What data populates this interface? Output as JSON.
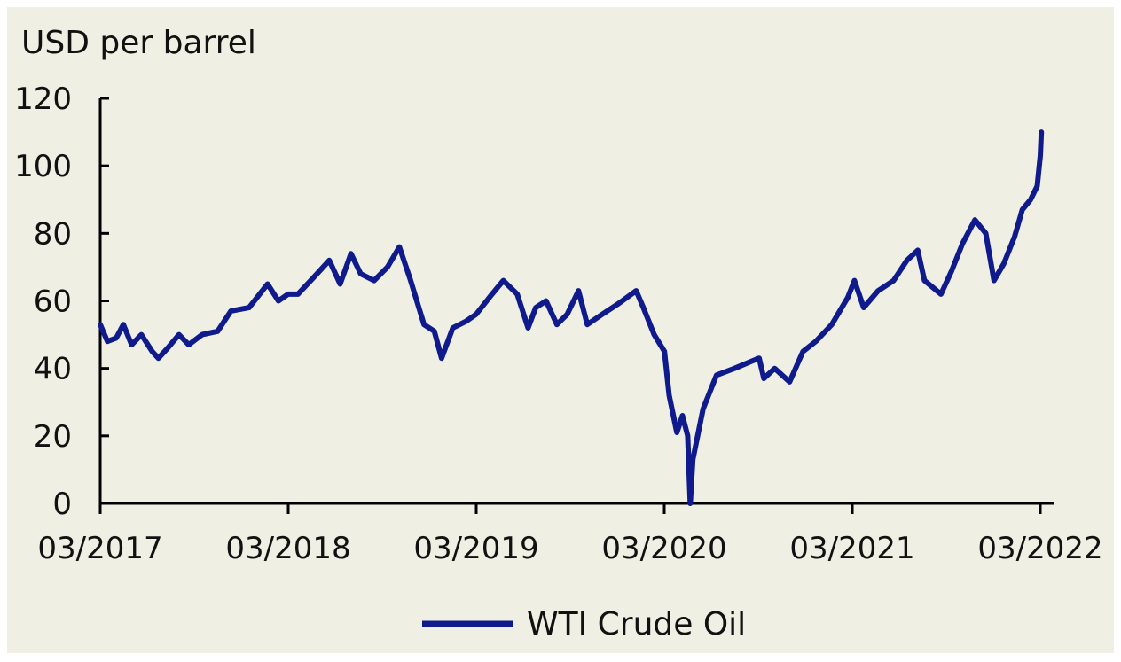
{
  "chart_data": {
    "type": "line",
    "ylabel": "USD per barrel",
    "ylim": [
      0,
      120
    ],
    "yticks": [
      "0",
      "20",
      "40",
      "60",
      "80",
      "100",
      "120"
    ],
    "xlim": [
      "2017-03",
      "2022-03"
    ],
    "xticks": [
      "03/2017",
      "03/2018",
      "03/2019",
      "03/2020",
      "03/2021",
      "03/2022"
    ],
    "grid": false,
    "legend_position": "bottom-center",
    "series": [
      {
        "name": "WTI Crude Oil",
        "color": "#0f1b8c",
        "points": [
          [
            "2017-03-01",
            53
          ],
          [
            "2017-03-15",
            48
          ],
          [
            "2017-04-01",
            49
          ],
          [
            "2017-04-15",
            53
          ],
          [
            "2017-05-01",
            47
          ],
          [
            "2017-05-20",
            50
          ],
          [
            "2017-06-10",
            45
          ],
          [
            "2017-06-22",
            43
          ],
          [
            "2017-07-10",
            46
          ],
          [
            "2017-08-01",
            50
          ],
          [
            "2017-08-20",
            47
          ],
          [
            "2017-09-15",
            50
          ],
          [
            "2017-10-15",
            51
          ],
          [
            "2017-11-10",
            57
          ],
          [
            "2017-12-15",
            58
          ],
          [
            "2018-01-20",
            65
          ],
          [
            "2018-02-10",
            60
          ],
          [
            "2018-03-01",
            62
          ],
          [
            "2018-03-20",
            62
          ],
          [
            "2018-04-20",
            67
          ],
          [
            "2018-05-20",
            72
          ],
          [
            "2018-06-10",
            65
          ],
          [
            "2018-07-01",
            74
          ],
          [
            "2018-07-20",
            68
          ],
          [
            "2018-08-15",
            66
          ],
          [
            "2018-09-10",
            70
          ],
          [
            "2018-10-03",
            76
          ],
          [
            "2018-10-25",
            66
          ],
          [
            "2018-11-20",
            53
          ],
          [
            "2018-12-10",
            51
          ],
          [
            "2018-12-24",
            43
          ],
          [
            "2019-01-15",
            52
          ],
          [
            "2019-02-10",
            54
          ],
          [
            "2019-03-01",
            56
          ],
          [
            "2019-04-01",
            62
          ],
          [
            "2019-04-23",
            66
          ],
          [
            "2019-05-20",
            62
          ],
          [
            "2019-06-10",
            52
          ],
          [
            "2019-06-25",
            58
          ],
          [
            "2019-07-15",
            60
          ],
          [
            "2019-08-05",
            53
          ],
          [
            "2019-08-25",
            56
          ],
          [
            "2019-09-16",
            63
          ],
          [
            "2019-10-03",
            53
          ],
          [
            "2019-11-01",
            56
          ],
          [
            "2019-12-01",
            59
          ],
          [
            "2020-01-06",
            63
          ],
          [
            "2020-01-20",
            58
          ],
          [
            "2020-02-10",
            50
          ],
          [
            "2020-03-01",
            45
          ],
          [
            "2020-03-10",
            32
          ],
          [
            "2020-03-25",
            21
          ],
          [
            "2020-04-05",
            26
          ],
          [
            "2020-04-15",
            20
          ],
          [
            "2020-04-20",
            0
          ],
          [
            "2020-04-25",
            13
          ],
          [
            "2020-05-15",
            28
          ],
          [
            "2020-06-10",
            38
          ],
          [
            "2020-07-15",
            40
          ],
          [
            "2020-08-15",
            42
          ],
          [
            "2020-09-01",
            43
          ],
          [
            "2020-09-10",
            37
          ],
          [
            "2020-10-01",
            40
          ],
          [
            "2020-10-30",
            36
          ],
          [
            "2020-11-25",
            45
          ],
          [
            "2020-12-20",
            48
          ],
          [
            "2021-01-20",
            53
          ],
          [
            "2021-02-20",
            61
          ],
          [
            "2021-03-05",
            66
          ],
          [
            "2021-03-23",
            58
          ],
          [
            "2021-04-20",
            63
          ],
          [
            "2021-05-20",
            66
          ],
          [
            "2021-06-15",
            72
          ],
          [
            "2021-07-06",
            75
          ],
          [
            "2021-07-19",
            66
          ],
          [
            "2021-08-20",
            62
          ],
          [
            "2021-09-10",
            69
          ],
          [
            "2021-10-01",
            77
          ],
          [
            "2021-10-25",
            84
          ],
          [
            "2021-11-15",
            80
          ],
          [
            "2021-12-01",
            66
          ],
          [
            "2021-12-20",
            71
          ],
          [
            "2022-01-10",
            79
          ],
          [
            "2022-01-25",
            87
          ],
          [
            "2022-02-10",
            90
          ],
          [
            "2022-02-23",
            94
          ],
          [
            "2022-03-01",
            103
          ],
          [
            "2022-03-03",
            110
          ]
        ]
      }
    ]
  }
}
